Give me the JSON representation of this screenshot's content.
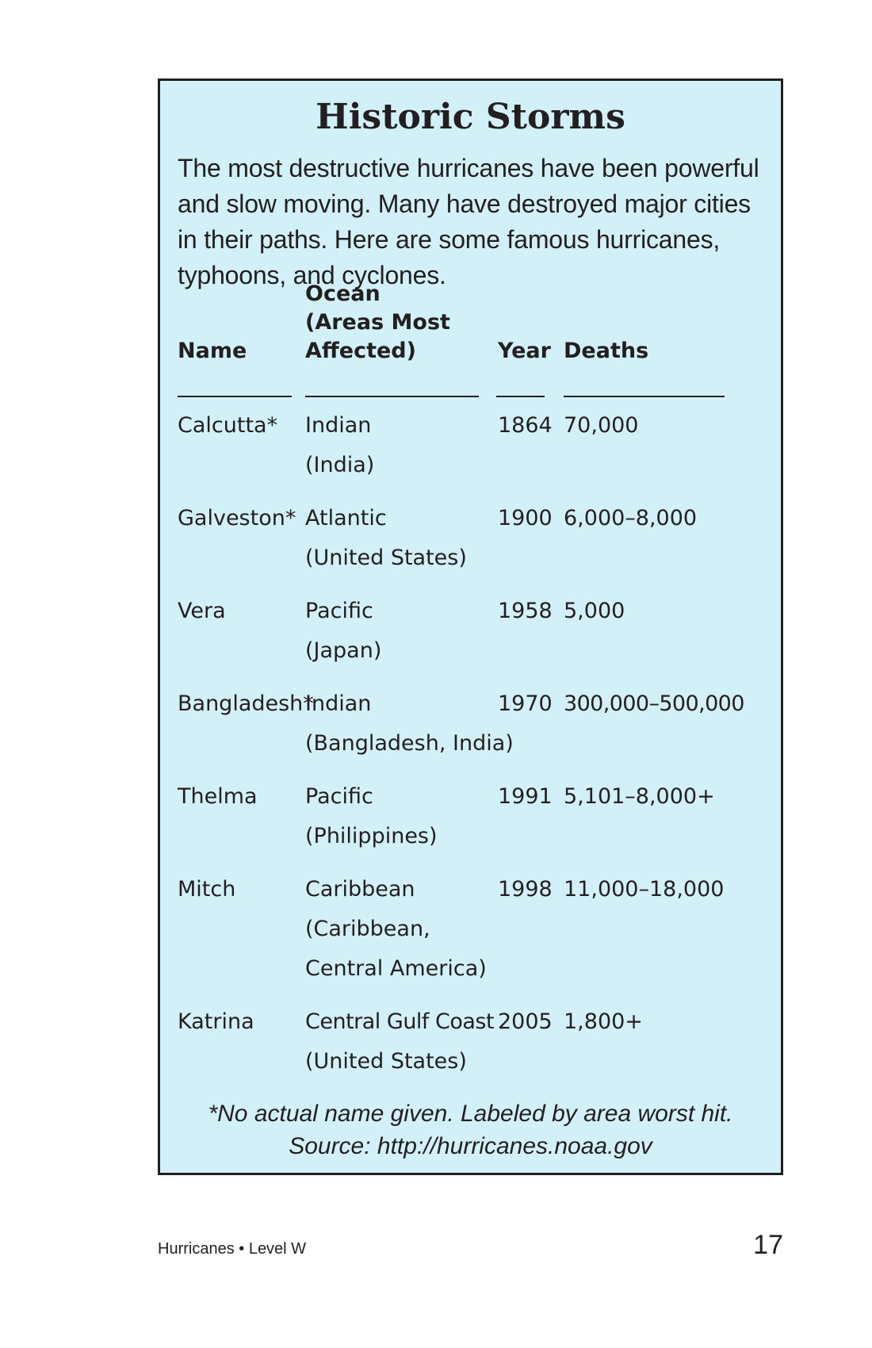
{
  "title": "Historic Storms",
  "intro": "The most destructive hurricanes have been powerful and slow moving. Many have destroyed major cities in their paths. Here are some famous hurricanes, typhoons, and cyclones.",
  "table": {
    "headers": {
      "name": "Name",
      "ocean_line1": "Ocean",
      "ocean_line2": "(Areas Most",
      "ocean_line3": "Affected)",
      "year": "Year",
      "deaths": "Deaths"
    },
    "rows": [
      {
        "name": "Calcutta*",
        "ocean": "Indian",
        "area1": "(India)",
        "area2": "",
        "year": "1864",
        "deaths": "70,000"
      },
      {
        "name": "Galveston*",
        "ocean": "Atlantic",
        "area1": "(United States)",
        "area2": "",
        "year": "1900",
        "deaths": "6,000–8,000"
      },
      {
        "name": "Vera",
        "ocean": "Pacific",
        "area1": "(Japan)",
        "area2": "",
        "year": "1958",
        "deaths": "5,000"
      },
      {
        "name": "Bangladesh*",
        "ocean": "Indian",
        "area1": "(Bangladesh, India)",
        "area2": "",
        "year": "1970",
        "deaths": "300,000–500,000"
      },
      {
        "name": "Thelma",
        "ocean": "Pacific",
        "area1": "(Philippines)",
        "area2": "",
        "year": "1991",
        "deaths": "5,101–8,000+"
      },
      {
        "name": "Mitch",
        "ocean": "Caribbean",
        "area1": "(Caribbean,",
        "area2": "Central America)",
        "year": "1998",
        "deaths": "11,000–18,000"
      },
      {
        "name": "Katrina",
        "ocean": "Central Gulf Coast",
        "area1": "(United States)",
        "area2": "",
        "year": "2005",
        "deaths": "1,800+"
      }
    ]
  },
  "footnote": "*No actual name given. Labeled by area worst hit.",
  "source": "Source: http://hurricanes.noaa.gov",
  "footer": {
    "book": "Hurricanes • Level W",
    "page_number": "17"
  }
}
